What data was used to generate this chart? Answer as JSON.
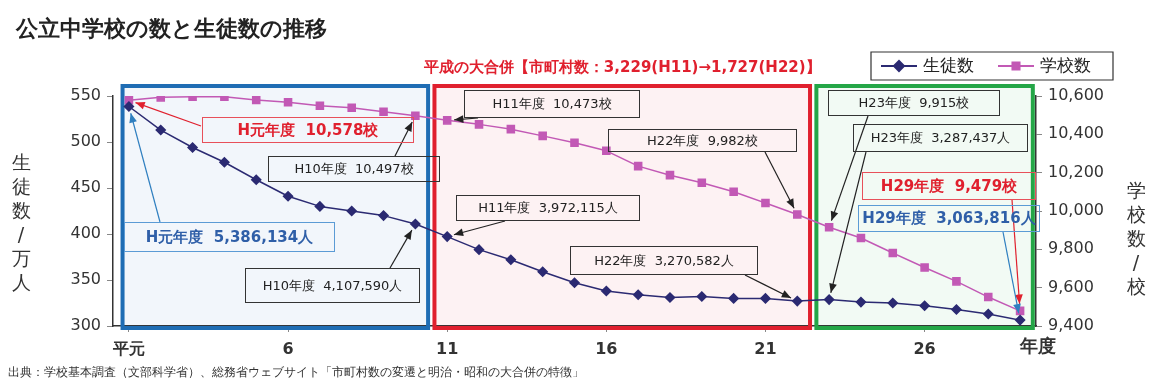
{
  "chart_data": {
    "type": "line",
    "title": "公立中学校の数と生徒数の推移",
    "xlabel": "年度",
    "ylabel": "生徒数/万人",
    "y2label": "学校数/校",
    "x": [
      1,
      2,
      3,
      4,
      5,
      6,
      7,
      8,
      9,
      10,
      11,
      12,
      13,
      14,
      15,
      16,
      17,
      18,
      19,
      20,
      21,
      22,
      23,
      24,
      25,
      26,
      27,
      28,
      29
    ],
    "xlim": [
      0.5,
      29.5
    ],
    "xticks": [
      {
        "value": 1,
        "label": "平元"
      },
      6,
      11,
      16,
      21,
      26
    ],
    "ylim": [
      300,
      550
    ],
    "yticks": [
      300,
      350,
      400,
      450,
      500,
      550
    ],
    "y2lim": [
      9400,
      10600
    ],
    "y2ticks": [
      {
        "value": 9400,
        "label": "9,400"
      },
      {
        "value": 9600,
        "label": "9,600"
      },
      {
        "value": 9800,
        "label": "9,800"
      },
      {
        "value": 10000,
        "label": "10,000"
      },
      {
        "value": 10200,
        "label": "10,200"
      },
      {
        "value": 10400,
        "label": "10,400"
      },
      {
        "value": 10600,
        "label": "10,600"
      }
    ],
    "series": [
      {
        "name": "生徒数",
        "color": "#2b2a72",
        "marker": "diamond",
        "values": [
          538.6,
          513,
          494,
          478,
          459,
          441,
          430,
          425,
          420,
          410.8,
          397.2,
          383,
          372,
          359,
          347,
          338,
          334,
          331,
          332,
          330,
          330,
          327.1,
          328.7,
          326,
          325,
          322,
          318,
          313,
          306.4
        ]
      },
      {
        "name": "学校数",
        "color": "#c259b5",
        "marker": "square",
        "axis": "y2",
        "values": [
          10578,
          10593,
          10596,
          10596,
          10579,
          10567,
          10549,
          10539,
          10518,
          10497,
          10473,
          10452,
          10427,
          10392,
          10356,
          10314,
          10234,
          10187,
          10147,
          10100,
          10042,
          9982,
          9915,
          9859,
          9781,
          9705,
          9633,
          9551,
          9479
        ]
      }
    ],
    "legend": "top right",
    "grid": false,
    "line_style": "solid",
    "bands": [
      {
        "axis": "x",
        "from": 0.8,
        "to": 10.4,
        "color": "#1f6db4"
      },
      {
        "axis": "x",
        "from": 10.6,
        "to": 22.4,
        "color": "#e0202e",
        "label": "平成の大合併【市町村数：3,229(H11)→1,727(H22)】"
      },
      {
        "axis": "x",
        "from": 22.6,
        "to": 29.4,
        "color": "#24a647"
      }
    ],
    "annotations": [
      "H元年度  10,578校",
      {
        "text": "H元年度  5,386,134人",
        "x": 1,
        "y": 538.6
      },
      {
        "text": "H10年度  10,497校",
        "x": 10,
        "y": 528.5
      },
      {
        "text": "H10年度  4,107,590人",
        "x": 10,
        "y": 410.8
      },
      {
        "text": "H11年度  10,473校",
        "x": 11,
        "y": 523.5
      },
      {
        "text": "H22年度  9,982校",
        "x": 22,
        "y": 421.3
      },
      {
        "text": "H11年度  3,972,115人",
        "x": 11,
        "y": 397.2
      },
      {
        "text": "H22年度  3,270,582人",
        "x": 22,
        "y": 327.1
      },
      {
        "text": "H23年度  9,915校",
        "x": 23,
        "y": 407.3
      },
      {
        "text": "H23年度  3,287,437人",
        "x": 23,
        "y": 328.7
      },
      {
        "text": "H29年度  9,479校",
        "x": 29,
        "y": 316.5
      },
      {
        "text": "H29年度  3,063,816人",
        "x": 29,
        "y": 306.4
      },
      "出典：学校基本調査（文部科学省）、総務省ウェブサイト「市町村数の変遷と明治・昭和の大合併の特徴」"
    ]
  }
}
